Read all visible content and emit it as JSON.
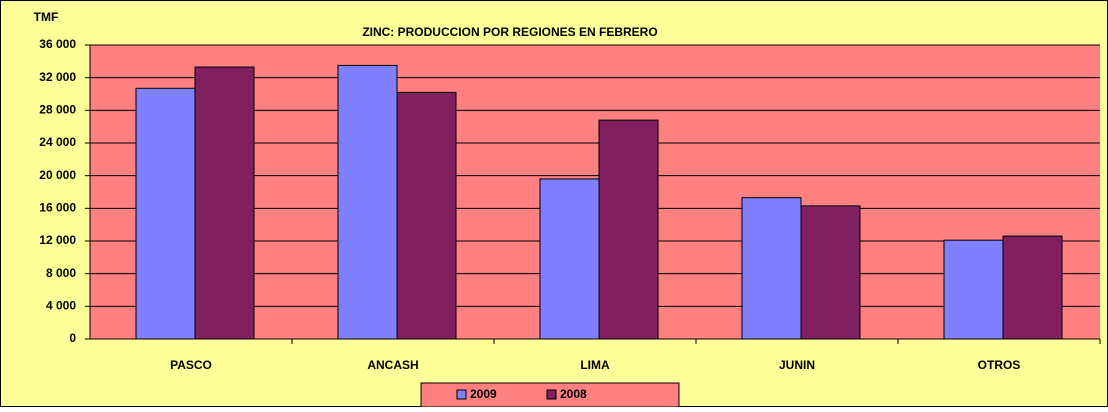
{
  "chart_data": {
    "type": "bar",
    "title": "ZINC: PRODUCCION POR REGIONES EN FEBRERO",
    "y_axis_label": "TMF",
    "categories": [
      "PASCO",
      "ANCASH",
      "LIMA",
      "JUNIN",
      "OTROS"
    ],
    "series": [
      {
        "name": "2009",
        "color": "#8080ff",
        "values": [
          30700,
          33500,
          19600,
          17300,
          12100
        ]
      },
      {
        "name": "2008",
        "color": "#802060",
        "values": [
          33300,
          30200,
          26800,
          16300,
          12600
        ]
      }
    ],
    "ylim": [
      0,
      36000
    ],
    "yticks": [
      0,
      {
        "value": 4000,
        "label": "4 000"
      },
      {
        "value": 8000,
        "label": "8 000"
      },
      {
        "value": 12000,
        "label": "12 000"
      },
      {
        "value": 16000,
        "label": "16 000"
      },
      {
        "value": 20000,
        "label": "20 000"
      },
      {
        "value": 24000,
        "label": "24 000"
      },
      {
        "value": 28000,
        "label": "28 000"
      },
      {
        "value": 32000,
        "label": "32 000"
      },
      {
        "value": 36000,
        "label": "36 000"
      }
    ],
    "grid": true,
    "legend": "bottom"
  }
}
